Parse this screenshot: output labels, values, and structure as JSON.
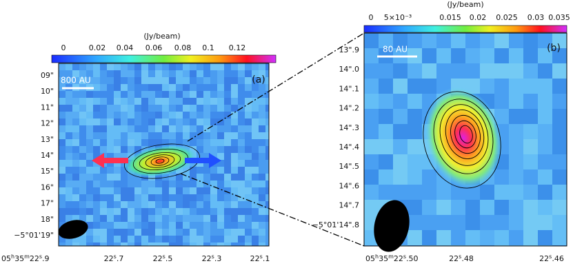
{
  "panels": [
    {
      "label": "(a)",
      "scale_label": "800 AU",
      "colorbar": {
        "unit": "(Jy/beam)",
        "ticks": [
          "0",
          "0.02",
          "0.04",
          "0.06",
          "0.08",
          "0.1",
          "0.12"
        ]
      },
      "y_ticks": [
        "09\"",
        "10\"",
        "11\"",
        "12\"",
        "13\"",
        "14\"",
        "15\"",
        "16\"",
        "17\"",
        "18\"",
        "−5°01'19\""
      ],
      "x_ticks": [
        [
          "05",
          "h",
          "35",
          "m",
          "22",
          "s",
          ".9"
        ],
        [
          "22",
          "s",
          ".7"
        ],
        [
          "22",
          "s",
          ".5"
        ],
        [
          "22",
          "s",
          ".3"
        ],
        [
          "22",
          "s",
          ".1"
        ]
      ]
    },
    {
      "label": "(b)",
      "scale_label": "80 AU",
      "colorbar": {
        "unit": "(Jy/beam)",
        "ticks": [
          "0",
          "5×10⁻³",
          "0.015",
          "0.02",
          "0.025",
          "0.03",
          "0.035"
        ]
      },
      "y_ticks": [
        "13\".9",
        "14\".0",
        "14\".1",
        "14\".2",
        "14\".3",
        "14\".4",
        "14\".5",
        "14\".6",
        "14\".7",
        "−5°01'14\".8"
      ],
      "x_ticks": [
        [
          "05",
          "h",
          "35",
          "m",
          "22",
          "s",
          ".50"
        ],
        [
          "22",
          "s",
          ".48"
        ],
        [
          "22",
          "s",
          ".46"
        ]
      ]
    }
  ]
}
